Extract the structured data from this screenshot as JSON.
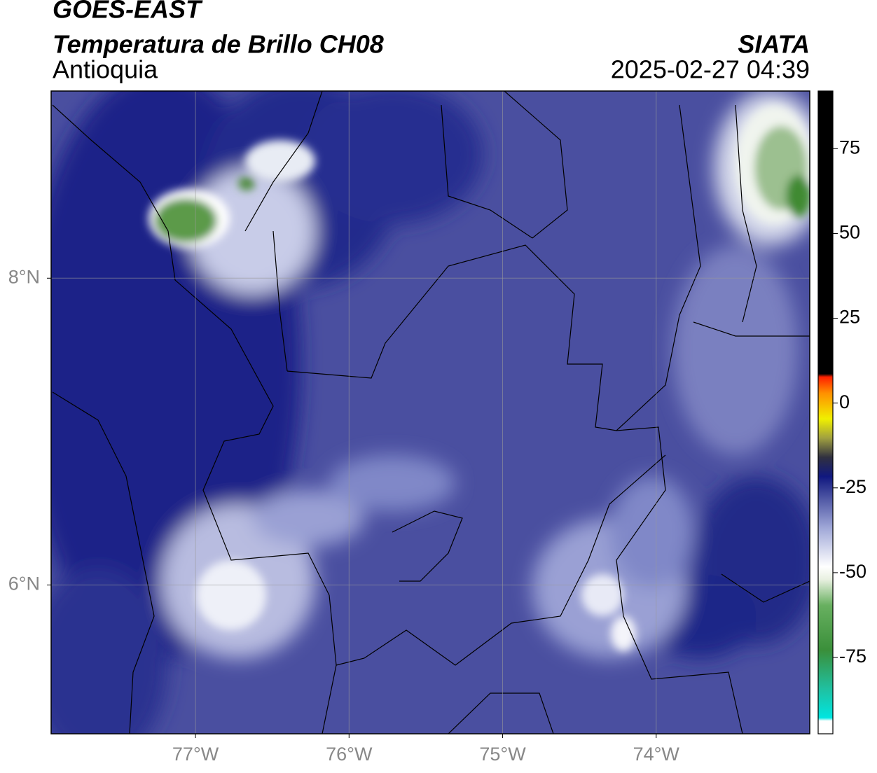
{
  "header": {
    "title": "GOES-EAST",
    "subtitle": "Temperatura de Brillo CH08",
    "region": "Antioquia",
    "source": "SIATA",
    "datetime": "2025-02-27 04:39"
  },
  "map": {
    "xlim": [
      -77.94,
      -73.0
    ],
    "ylim": [
      5.03,
      9.22
    ],
    "xticks": [
      {
        "value": -77,
        "label": "77°W"
      },
      {
        "value": -76,
        "label": "76°W"
      },
      {
        "value": -75,
        "label": "75°W"
      },
      {
        "value": -74,
        "label": "74°W"
      }
    ],
    "yticks": [
      {
        "value": 6,
        "label": "6°N"
      },
      {
        "value": 8,
        "label": "8°N"
      }
    ],
    "grid": true
  },
  "colorbar": {
    "lim": [
      -97.5,
      92
    ],
    "ticks": [
      -75,
      -50,
      -25,
      0,
      25,
      50,
      75
    ]
  }
}
